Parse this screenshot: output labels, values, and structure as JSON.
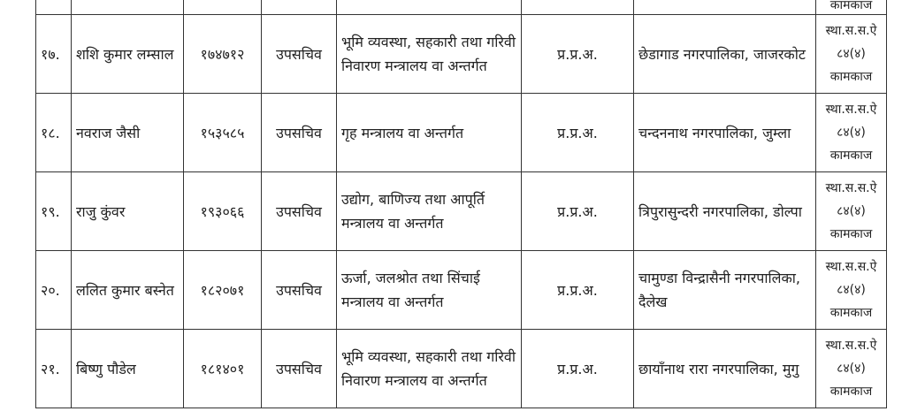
{
  "partial_row": {
    "remark": "कामकाज"
  },
  "rows": [
    {
      "sn": "१७.",
      "name": "शशि कुमार लम्साल",
      "id": "१७४७१२",
      "post": "उपसचिव",
      "ministry": "भूमि व्यवस्था, सहकारी तथा गरिवी निवारण मन्त्रालय वा अन्तर्गत",
      "type": "प्र.प्र.अ.",
      "office": "छेडागाड नगरपालिका, जाजरकोट",
      "remark": [
        "स्था.स.स.ऐ",
        "८४(४)",
        "कामकाज"
      ]
    },
    {
      "sn": "१८.",
      "name": "नवराज जैसी",
      "id": "१५३५८५",
      "post": "उपसचिव",
      "ministry": "गृह मन्त्रालय वा अन्तर्गत",
      "type": "प्र.प्र.अ.",
      "office": "चन्दननाथ नगरपालिका, जुम्ला",
      "remark": [
        "स्था.स.स.ऐ",
        "८४(४)",
        "कामकाज"
      ]
    },
    {
      "sn": "१९.",
      "name": "राजु कुंवर",
      "id": "१९३०६६",
      "post": "उपसचिव",
      "ministry": "उद्योग, बाणिज्य तथा आपूर्ति मन्त्रालय वा अन्तर्गत",
      "type": "प्र.प्र.अ.",
      "office": "त्रिपुरासुन्दरी नगरपालिका, डोल्पा",
      "remark": [
        "स्था.स.स.ऐ",
        "८४(४)",
        "कामकाज"
      ]
    },
    {
      "sn": "२०.",
      "name": "ललित कुमार बस्नेत",
      "id": "१८२०७१",
      "post": "उपसचिव",
      "ministry": "ऊर्जा, जलश्रोत तथा सिंचाई मन्त्रालय वा अन्तर्गत",
      "type": "प्र.प्र.अ.",
      "office": "चामुण्डा विन्द्रासैनी नगरपालिका, दैलेख",
      "remark": [
        "स्था.स.स.ऐ",
        "८४(४)",
        "कामकाज"
      ]
    },
    {
      "sn": "२१.",
      "name": "बिष्णु पौडेल",
      "id": "१८१४०१",
      "post": "उपसचिव",
      "ministry": "भूमि व्यवस्था, सहकारी तथा गरिवी निवारण मन्त्रालय वा अन्तर्गत",
      "type": "प्र.प्र.अ.",
      "office": "छायाँनाथ रारा नगरपालिका, मुगु",
      "remark": [
        "स्था.स.स.ऐ",
        "८४(४)",
        "कामकाज"
      ]
    }
  ]
}
